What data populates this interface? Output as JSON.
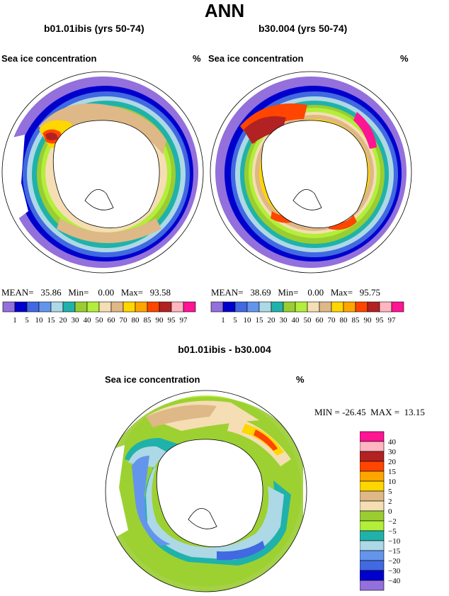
{
  "title": "ANN",
  "panels": [
    {
      "case": "b01.01ibis (yrs 50-74)",
      "variable": "Sea ice concentration",
      "units": "%",
      "stats": "MEAN=   35.86   Min=    0.00   Max=   93.58"
    },
    {
      "case": "b30.004 (yrs 50-74)",
      "variable": "Sea ice concentration",
      "units": "%",
      "stats": "MEAN=   38.69   Min=    0.00   Max=   95.75"
    }
  ],
  "diff": {
    "case": "b01.01ibis - b30.004",
    "variable": "Sea ice concentration",
    "units": "%",
    "stats": "MIN = -26.45  MAX =  13.15"
  },
  "colorbar_levels": [
    "1",
    "5",
    "10",
    "15",
    "20",
    "30",
    "40",
    "50",
    "60",
    "70",
    "80",
    "85",
    "90",
    "95",
    "97"
  ],
  "colorbar_colors": [
    "#9370db",
    "#0000cd",
    "#4169e1",
    "#6495ed",
    "#add8e6",
    "#20b2aa",
    "#9acd32",
    "#b3ee3a",
    "#f5deb3",
    "#deb887",
    "#ffd700",
    "#ffa500",
    "#ff4500",
    "#b22222",
    "#ffb6c1",
    "#ff1493"
  ],
  "diff_levels": [
    "40",
    "30",
    "20",
    "15",
    "10",
    "5",
    "2",
    "0",
    "−2",
    "−5",
    "−10",
    "−15",
    "−20",
    "−30",
    "−40"
  ],
  "diff_colors": [
    "#ff1493",
    "#ffb6c1",
    "#b22222",
    "#ff4500",
    "#ffa500",
    "#ffd700",
    "#deb887",
    "#f5deb3",
    "#9acd32",
    "#b3ee3a",
    "#20b2aa",
    "#add8e6",
    "#6495ed",
    "#4169e1",
    "#0000cd",
    "#9370db"
  ]
}
